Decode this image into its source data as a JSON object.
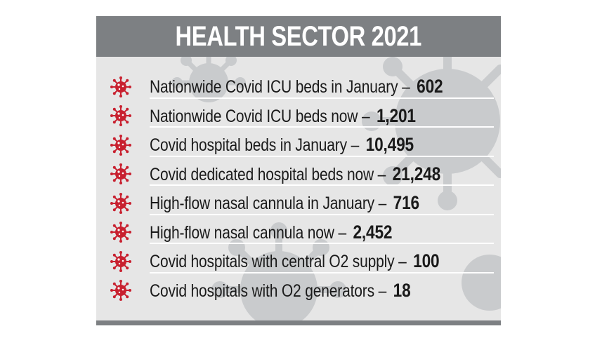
{
  "title": "HEALTH SECTOR 2021",
  "colors": {
    "header_bg": "#7d8083",
    "panel_bg": "#e6e6e6",
    "bullet_red": "#c8202f",
    "virus_art": "#c9cbcd"
  },
  "bullet_icon": "coronavirus-icon",
  "items": [
    {
      "label": "Nationwide Covid ICU beds in January –",
      "value": "602"
    },
    {
      "label": "Nationwide Covid ICU beds now –",
      "value": "1,201"
    },
    {
      "label": "Covid hospital beds in January –",
      "value": "10,495"
    },
    {
      "label": "Covid dedicated hospital beds now –",
      "value": "21,248"
    },
    {
      "label": "High-flow nasal cannula in January –",
      "value": "716"
    },
    {
      "label": "High-flow nasal cannula now –",
      "value": "2,452"
    },
    {
      "label": "Covid hospitals with central O2 supply –",
      "value": "100"
    },
    {
      "label": "Covid hospitals with O2 generators –",
      "value": "18"
    }
  ]
}
